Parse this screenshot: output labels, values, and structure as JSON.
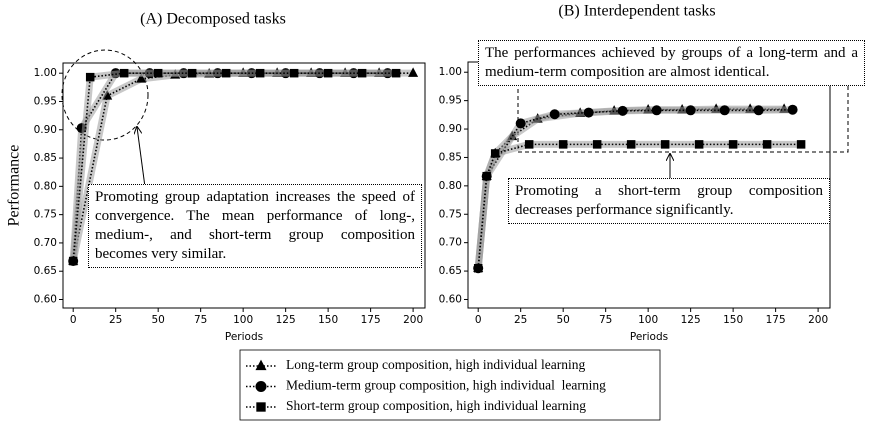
{
  "chart_data": [
    {
      "type": "line",
      "title": "(A) Decomposed tasks",
      "xlabel": "Periods",
      "ylabel": "Performance",
      "xlim": [
        -6,
        207
      ],
      "ylim": [
        0.585,
        1.018
      ],
      "xticks": [
        0,
        25,
        50,
        75,
        100,
        125,
        150,
        175,
        200
      ],
      "yticks": [
        {
          "value": 0.6,
          "label": "0.60"
        },
        {
          "value": 0.65,
          "label": "0.65"
        },
        {
          "value": 0.7,
          "label": "0.70"
        },
        {
          "value": 0.75,
          "label": "0.75"
        },
        {
          "value": 0.8,
          "label": "0.80"
        },
        {
          "value": 0.85,
          "label": "0.85"
        },
        {
          "value": 0.9,
          "label": "0.90"
        },
        {
          "value": 0.95,
          "label": "0.95"
        },
        {
          "value": 1.0,
          "label": "1.00"
        }
      ],
      "series": [
        {
          "name": "Long-term group composition, high individual learning",
          "marker": "^",
          "color": "#000000",
          "x": [
            0,
            20,
            40,
            60,
            80,
            100,
            120,
            140,
            160,
            180,
            200
          ],
          "values": [
            0.668,
            0.96,
            0.99,
            0.997,
            0.999,
            1.0,
            1.0,
            1.0,
            1.0,
            1.0,
            1.0
          ]
        },
        {
          "name": "Medium-term group composition, high individual  learning",
          "marker": "o",
          "color": "#000000",
          "x": [
            0,
            5,
            25,
            45,
            65,
            85,
            105,
            125,
            145,
            165,
            185
          ],
          "values": [
            0.668,
            0.903,
            1.0,
            1.0,
            1.0,
            1.0,
            1.0,
            1.0,
            1.0,
            1.0,
            1.0
          ]
        },
        {
          "name": "Short-term group composition, high individual learning",
          "marker": "s",
          "color": "#000000",
          "x": [
            0,
            10,
            30,
            50,
            70,
            90,
            110,
            130,
            150,
            170,
            190
          ],
          "values": [
            0.668,
            0.993,
            1.0,
            1.0,
            1.0,
            1.0,
            1.0,
            1.0,
            1.0,
            1.0,
            1.0
          ]
        }
      ],
      "annotations": [
        "Promoting group adaptation increases the speed of convergence. The mean performance of long-, medium-, and short-term group composition becomes very similar."
      ]
    },
    {
      "type": "line",
      "title": "(B) Interdependent tasks",
      "xlabel": "Periods",
      "xlim": [
        -6,
        207
      ],
      "ylim": [
        0.585,
        1.018
      ],
      "xticks": [
        0,
        25,
        50,
        75,
        100,
        125,
        150,
        175,
        200
      ],
      "yticks": [
        {
          "value": 0.6,
          "label": "0.60"
        },
        {
          "value": 0.65,
          "label": "0.65"
        },
        {
          "value": 0.7,
          "label": "0.70"
        },
        {
          "value": 0.75,
          "label": "0.75"
        },
        {
          "value": 0.8,
          "label": "0.80"
        },
        {
          "value": 0.85,
          "label": "0.85"
        },
        {
          "value": 0.9,
          "label": "0.90"
        },
        {
          "value": 0.95,
          "label": "0.95"
        },
        {
          "value": 1.0,
          "label": "1.00"
        }
      ],
      "series": [
        {
          "marker": "^",
          "color": "#000000",
          "x": [
            0,
            5,
            10,
            20,
            35,
            60,
            80,
            100,
            120,
            140,
            160,
            180
          ],
          "values": [
            0.655,
            0.817,
            0.857,
            0.887,
            0.918,
            0.928,
            0.932,
            0.934,
            0.934,
            0.935,
            0.935,
            0.935
          ]
        },
        {
          "marker": "o",
          "color": "#000000",
          "x": [
            0,
            5,
            25,
            45,
            65,
            85,
            105,
            125,
            145,
            165,
            185
          ],
          "values": [
            0.655,
            0.817,
            0.91,
            0.926,
            0.929,
            0.932,
            0.933,
            0.933,
            0.933,
            0.933,
            0.934
          ]
        },
        {
          "marker": "s",
          "color": "#000000",
          "x": [
            0,
            5,
            10,
            30,
            50,
            70,
            90,
            110,
            130,
            150,
            170,
            190
          ],
          "values": [
            0.655,
            0.817,
            0.857,
            0.873,
            0.873,
            0.873,
            0.873,
            0.873,
            0.873,
            0.873,
            0.873,
            0.873
          ]
        }
      ],
      "annotations": [
        "The performances achieved by groups of a long-term and a medium-term composition are almost identical.",
        "Promoting a short-term group composition decreases performance significantly."
      ]
    }
  ]
}
